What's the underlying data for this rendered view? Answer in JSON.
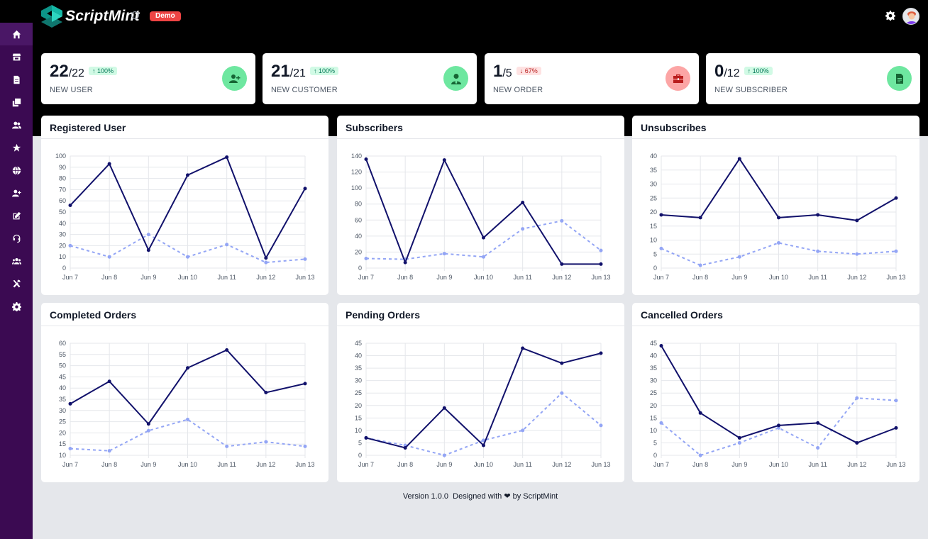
{
  "app": {
    "brand_name": "ScriptMint",
    "env_badge": "Demo"
  },
  "sidebar": {
    "items": [
      {
        "name": "home-icon"
      },
      {
        "name": "store-icon"
      },
      {
        "name": "file-icon"
      },
      {
        "name": "copy-icon"
      },
      {
        "name": "users-icon"
      },
      {
        "name": "star-icon"
      },
      {
        "name": "globe-icon"
      },
      {
        "name": "user-plus-icon"
      },
      {
        "name": "edit-icon"
      },
      {
        "name": "headset-icon"
      },
      {
        "name": "team-icon"
      },
      {
        "name": "tools-icon"
      },
      {
        "name": "settings-icon"
      }
    ]
  },
  "stats": [
    {
      "value": "22",
      "total": "/22",
      "change": "100%",
      "direction": "up",
      "label": "NEW USER",
      "icon": "user-plus-icon"
    },
    {
      "value": "21",
      "total": "/21",
      "change": "100%",
      "direction": "up",
      "label": "NEW CUSTOMER",
      "icon": "user-tie-icon"
    },
    {
      "value": "1",
      "total": "/5",
      "change": "67%",
      "direction": "down",
      "label": "NEW ORDER",
      "icon": "briefcase-icon"
    },
    {
      "value": "0",
      "total": "/12",
      "change": "100%",
      "direction": "up",
      "label": "NEW SUBSCRIBER",
      "icon": "document-icon"
    }
  ],
  "colors": {
    "series_primary": "#11116b",
    "series_secondary": "#93a5f5",
    "badge_demo": "#ef4444",
    "sidebar": "#3b0a52"
  },
  "chart_data": [
    {
      "type": "line",
      "title": "Registered User",
      "x": [
        "Jun 7",
        "Jun 8",
        "Jun 9",
        "Jun 10",
        "Jun 11",
        "Jun 12",
        "Jun 13"
      ],
      "ylim": [
        0,
        100
      ],
      "yticks": [
        0,
        10,
        20,
        30,
        40,
        50,
        60,
        70,
        80,
        90,
        100
      ],
      "series": [
        {
          "values": [
            56,
            93,
            16,
            83,
            99,
            9,
            71
          ]
        },
        {
          "values": [
            20,
            10,
            30,
            10,
            21,
            5,
            8
          ]
        }
      ]
    },
    {
      "type": "line",
      "title": "Subscribers",
      "x": [
        "Jun 7",
        "Jun 8",
        "Jun 9",
        "Jun 10",
        "Jun 11",
        "Jun 12",
        "Jun 13"
      ],
      "ylim": [
        0,
        140
      ],
      "yticks": [
        0,
        20,
        40,
        60,
        80,
        100,
        120,
        140
      ],
      "series": [
        {
          "values": [
            136,
            7,
            135,
            38,
            82,
            5,
            5
          ]
        },
        {
          "values": [
            12,
            11,
            18,
            14,
            49,
            59,
            22
          ]
        }
      ]
    },
    {
      "type": "line",
      "title": "Unsubscribes",
      "x": [
        "Jun 7",
        "Jun 8",
        "Jun 9",
        "Jun 10",
        "Jun 11",
        "Jun 12",
        "Jun 13"
      ],
      "ylim": [
        0,
        40
      ],
      "yticks": [
        0,
        5,
        10,
        15,
        20,
        25,
        30,
        35,
        40
      ],
      "series": [
        {
          "values": [
            19,
            18,
            39,
            18,
            19,
            17,
            25
          ]
        },
        {
          "values": [
            7,
            1,
            4,
            9,
            6,
            5,
            6
          ]
        }
      ]
    },
    {
      "type": "line",
      "title": "Completed Orders",
      "x": [
        "Jun 7",
        "Jun 8",
        "Jun 9",
        "Jun 10",
        "Jun 11",
        "Jun 12",
        "Jun 13"
      ],
      "ylim": [
        10,
        60
      ],
      "yticks": [
        10,
        15,
        20,
        25,
        30,
        35,
        40,
        45,
        50,
        55,
        60
      ],
      "series": [
        {
          "values": [
            33,
            43,
            24,
            49,
            57,
            38,
            42
          ]
        },
        {
          "values": [
            13,
            12,
            21,
            26,
            14,
            16,
            14
          ]
        }
      ]
    },
    {
      "type": "line",
      "title": "Pending Orders",
      "x": [
        "Jun 7",
        "Jun 8",
        "Jun 9",
        "Jun 10",
        "Jun 11",
        "Jun 12",
        "Jun 13"
      ],
      "ylim": [
        0,
        45
      ],
      "yticks": [
        0,
        5,
        10,
        15,
        20,
        25,
        30,
        35,
        40,
        45
      ],
      "series": [
        {
          "values": [
            7,
            3,
            19,
            4,
            43,
            37,
            41
          ]
        },
        {
          "values": [
            7,
            4,
            0,
            6,
            10,
            25,
            12
          ]
        }
      ]
    },
    {
      "type": "line",
      "title": "Cancelled Orders",
      "x": [
        "Jun 7",
        "Jun 8",
        "Jun 9",
        "Jun 10",
        "Jun 11",
        "Jun 12",
        "Jun 13"
      ],
      "ylim": [
        0,
        45
      ],
      "yticks": [
        0,
        5,
        10,
        15,
        20,
        25,
        30,
        35,
        40,
        45
      ],
      "series": [
        {
          "values": [
            44,
            17,
            7,
            12,
            13,
            5,
            11
          ]
        },
        {
          "values": [
            13,
            0,
            5,
            11,
            3,
            23,
            22
          ]
        }
      ]
    }
  ],
  "footer": {
    "version": "Version 1.0.0",
    "designed_with": "Designed with",
    "heart": "❤",
    "by": "by ScriptMint"
  }
}
